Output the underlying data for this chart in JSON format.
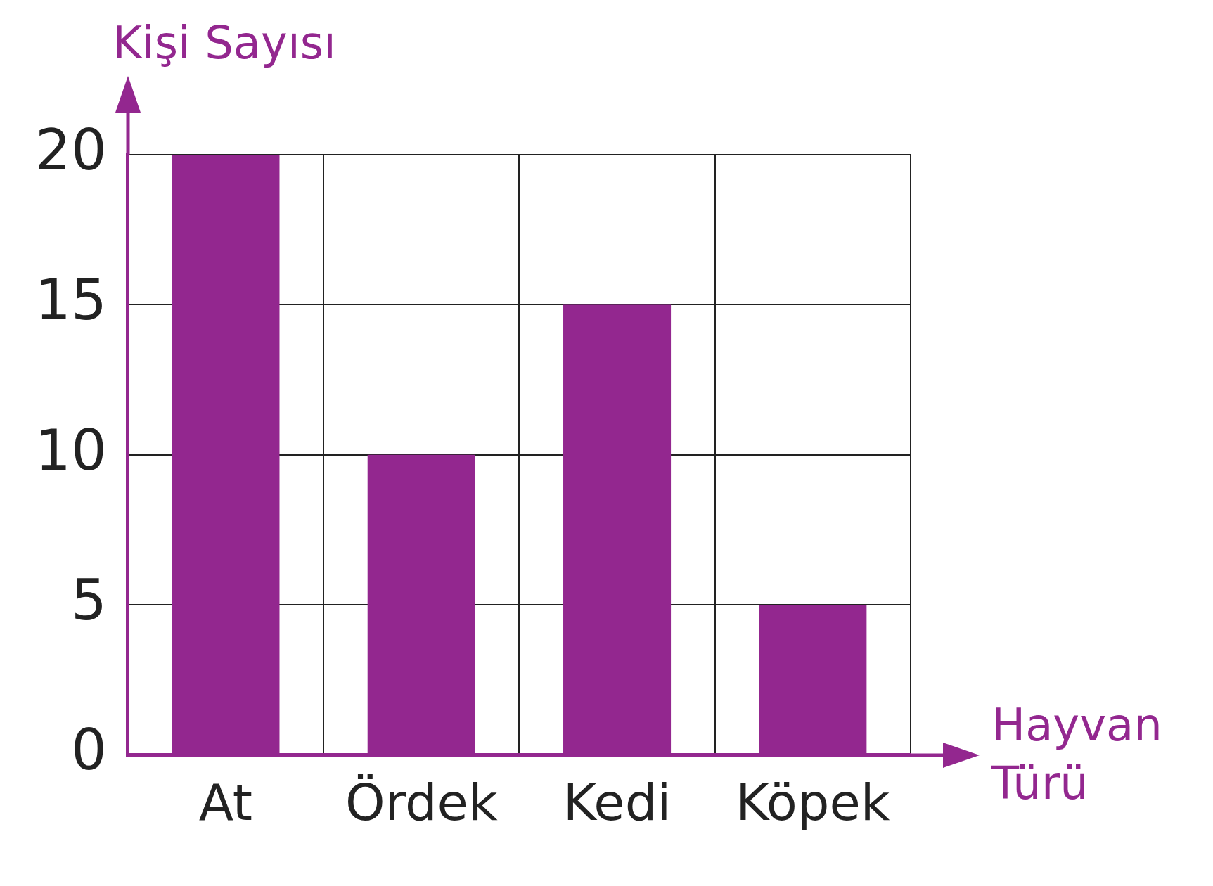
{
  "chart_data": {
    "type": "bar",
    "xlabel": "Hayvan Türü",
    "ylabel": "Kişi Sayısı",
    "categories": [
      "At",
      "Ördek",
      "Kedi",
      "Köpek"
    ],
    "values": [
      20,
      10,
      15,
      5
    ],
    "color": "#93278f",
    "ylim": [
      0,
      20
    ],
    "yticks": [
      0,
      5,
      10,
      15,
      20
    ],
    "grid": true,
    "legend": false
  }
}
